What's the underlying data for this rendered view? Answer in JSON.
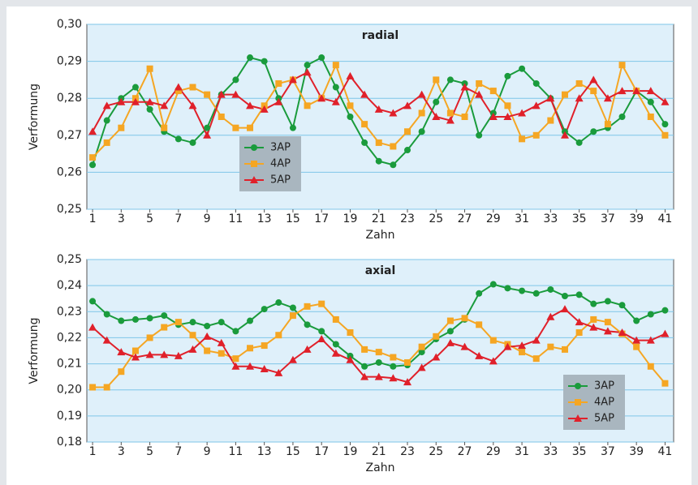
{
  "chart_data": [
    {
      "type": "line",
      "title": "radial",
      "x_label": "Zahn",
      "y_label": "Verformung",
      "x": [
        1,
        2,
        3,
        4,
        5,
        6,
        7,
        8,
        9,
        10,
        11,
        12,
        13,
        14,
        15,
        16,
        17,
        18,
        19,
        20,
        21,
        22,
        23,
        24,
        25,
        26,
        27,
        28,
        29,
        30,
        31,
        32,
        33,
        34,
        35,
        36,
        37,
        38,
        39,
        40,
        41
      ],
      "xlim": [
        0.6,
        41.6
      ],
      "xticks": [
        1,
        3,
        5,
        7,
        9,
        11,
        13,
        15,
        17,
        19,
        21,
        23,
        25,
        27,
        29,
        31,
        33,
        35,
        37,
        39,
        41
      ],
      "ylim": [
        0.25,
        0.3
      ],
      "yticks": [
        {
          "value": 0.25,
          "label": "0,25"
        },
        {
          "value": 0.26,
          "label": "0,26"
        },
        {
          "value": 0.27,
          "label": "0,27"
        },
        {
          "value": 0.28,
          "label": "0,28"
        },
        {
          "value": 0.29,
          "label": "0,29"
        },
        {
          "value": 0.3,
          "label": "0,30"
        }
      ],
      "grid": true,
      "legend": "lower-center",
      "series": [
        {
          "name": "3AP",
          "color": "#1a9b3c",
          "marker": "circle",
          "values": [
            0.262,
            0.274,
            0.28,
            0.283,
            0.277,
            0.271,
            0.269,
            0.268,
            0.272,
            0.281,
            0.285,
            0.291,
            0.29,
            0.28,
            0.272,
            0.289,
            0.291,
            0.283,
            0.275,
            0.268,
            0.263,
            0.262,
            0.266,
            0.271,
            0.279,
            0.285,
            0.284,
            0.27,
            0.276,
            0.286,
            0.288,
            0.284,
            0.28,
            0.271,
            0.268,
            0.271,
            0.272,
            0.275,
            0.282,
            0.279,
            0.273
          ]
        },
        {
          "name": "4AP",
          "color": "#f5a623",
          "marker": "square",
          "values": [
            0.264,
            0.268,
            0.272,
            0.28,
            0.288,
            0.272,
            0.282,
            0.283,
            0.281,
            0.275,
            0.272,
            0.272,
            0.278,
            0.284,
            0.285,
            0.278,
            0.28,
            0.289,
            0.278,
            0.273,
            0.268,
            0.267,
            0.271,
            0.276,
            0.285,
            0.276,
            0.275,
            0.284,
            0.282,
            0.278,
            0.269,
            0.27,
            0.274,
            0.281,
            0.284,
            0.282,
            0.273,
            0.289,
            0.282,
            0.275,
            0.27
          ]
        },
        {
          "name": "5AP",
          "color": "#e0202a",
          "marker": "triangle",
          "values": [
            0.271,
            0.278,
            0.279,
            0.279,
            0.279,
            0.278,
            0.283,
            0.278,
            0.27,
            0.281,
            0.281,
            0.278,
            0.277,
            0.279,
            0.285,
            0.287,
            0.28,
            0.279,
            0.286,
            0.281,
            0.277,
            0.276,
            0.278,
            0.281,
            0.275,
            0.274,
            0.283,
            0.281,
            0.275,
            0.275,
            0.276,
            0.278,
            0.28,
            0.27,
            0.28,
            0.285,
            0.28,
            0.282,
            0.282,
            0.282,
            0.279
          ]
        }
      ]
    },
    {
      "type": "line",
      "title": "axial",
      "x_label": "Zahn",
      "y_label": "Verformung",
      "x": [
        1,
        2,
        3,
        4,
        5,
        6,
        7,
        8,
        9,
        10,
        11,
        12,
        13,
        14,
        15,
        16,
        17,
        18,
        19,
        20,
        21,
        22,
        23,
        24,
        25,
        26,
        27,
        28,
        29,
        30,
        31,
        32,
        33,
        34,
        35,
        36,
        37,
        38,
        39,
        40,
        41
      ],
      "xlim": [
        0.6,
        41.6
      ],
      "xticks": [
        1,
        3,
        5,
        7,
        9,
        11,
        13,
        15,
        17,
        19,
        21,
        23,
        25,
        27,
        29,
        31,
        33,
        35,
        37,
        39,
        41
      ],
      "ylim": [
        0.18,
        0.25
      ],
      "yticks": [
        {
          "value": 0.18,
          "label": "0,18"
        },
        {
          "value": 0.19,
          "label": "0,19"
        },
        {
          "value": 0.2,
          "label": "0,20"
        },
        {
          "value": 0.21,
          "label": "0,21"
        },
        {
          "value": 0.22,
          "label": "0,22"
        },
        {
          "value": 0.23,
          "label": "0,23"
        },
        {
          "value": 0.24,
          "label": "0,24"
        },
        {
          "value": 0.25,
          "label": "0,25"
        }
      ],
      "grid": true,
      "legend": "lower-right",
      "series": [
        {
          "name": "3AP",
          "color": "#1a9b3c",
          "marker": "circle",
          "values": [
            0.234,
            0.229,
            0.2265,
            0.227,
            0.2275,
            0.2285,
            0.225,
            0.226,
            0.2245,
            0.226,
            0.2225,
            0.2265,
            0.231,
            0.2335,
            0.2315,
            0.225,
            0.2225,
            0.2175,
            0.213,
            0.209,
            0.2105,
            0.209,
            0.2095,
            0.2145,
            0.2195,
            0.2225,
            0.227,
            0.237,
            0.2405,
            0.239,
            0.238,
            0.237,
            0.2385,
            0.236,
            0.2365,
            0.233,
            0.234,
            0.2325,
            0.2265,
            0.229,
            0.2305
          ]
        },
        {
          "name": "4AP",
          "color": "#f5a623",
          "marker": "square",
          "values": [
            0.201,
            0.201,
            0.207,
            0.215,
            0.22,
            0.224,
            0.226,
            0.221,
            0.215,
            0.214,
            0.212,
            0.216,
            0.217,
            0.221,
            0.2285,
            0.232,
            0.233,
            0.227,
            0.222,
            0.2155,
            0.2145,
            0.2125,
            0.2105,
            0.2165,
            0.2205,
            0.2265,
            0.2275,
            0.225,
            0.219,
            0.2175,
            0.2145,
            0.212,
            0.2165,
            0.2155,
            0.222,
            0.227,
            0.226,
            0.2215,
            0.2165,
            0.209,
            0.2025
          ]
        },
        {
          "name": "5AP",
          "color": "#e0202a",
          "marker": "triangle",
          "values": [
            0.224,
            0.219,
            0.2145,
            0.2125,
            0.2135,
            0.2135,
            0.213,
            0.2155,
            0.2205,
            0.218,
            0.209,
            0.209,
            0.208,
            0.2065,
            0.2115,
            0.2155,
            0.2195,
            0.214,
            0.2115,
            0.205,
            0.205,
            0.2045,
            0.203,
            0.2085,
            0.2125,
            0.218,
            0.2165,
            0.213,
            0.211,
            0.2165,
            0.217,
            0.219,
            0.228,
            0.231,
            0.226,
            0.224,
            0.2225,
            0.222,
            0.219,
            0.219,
            0.2215
          ]
        }
      ]
    }
  ]
}
